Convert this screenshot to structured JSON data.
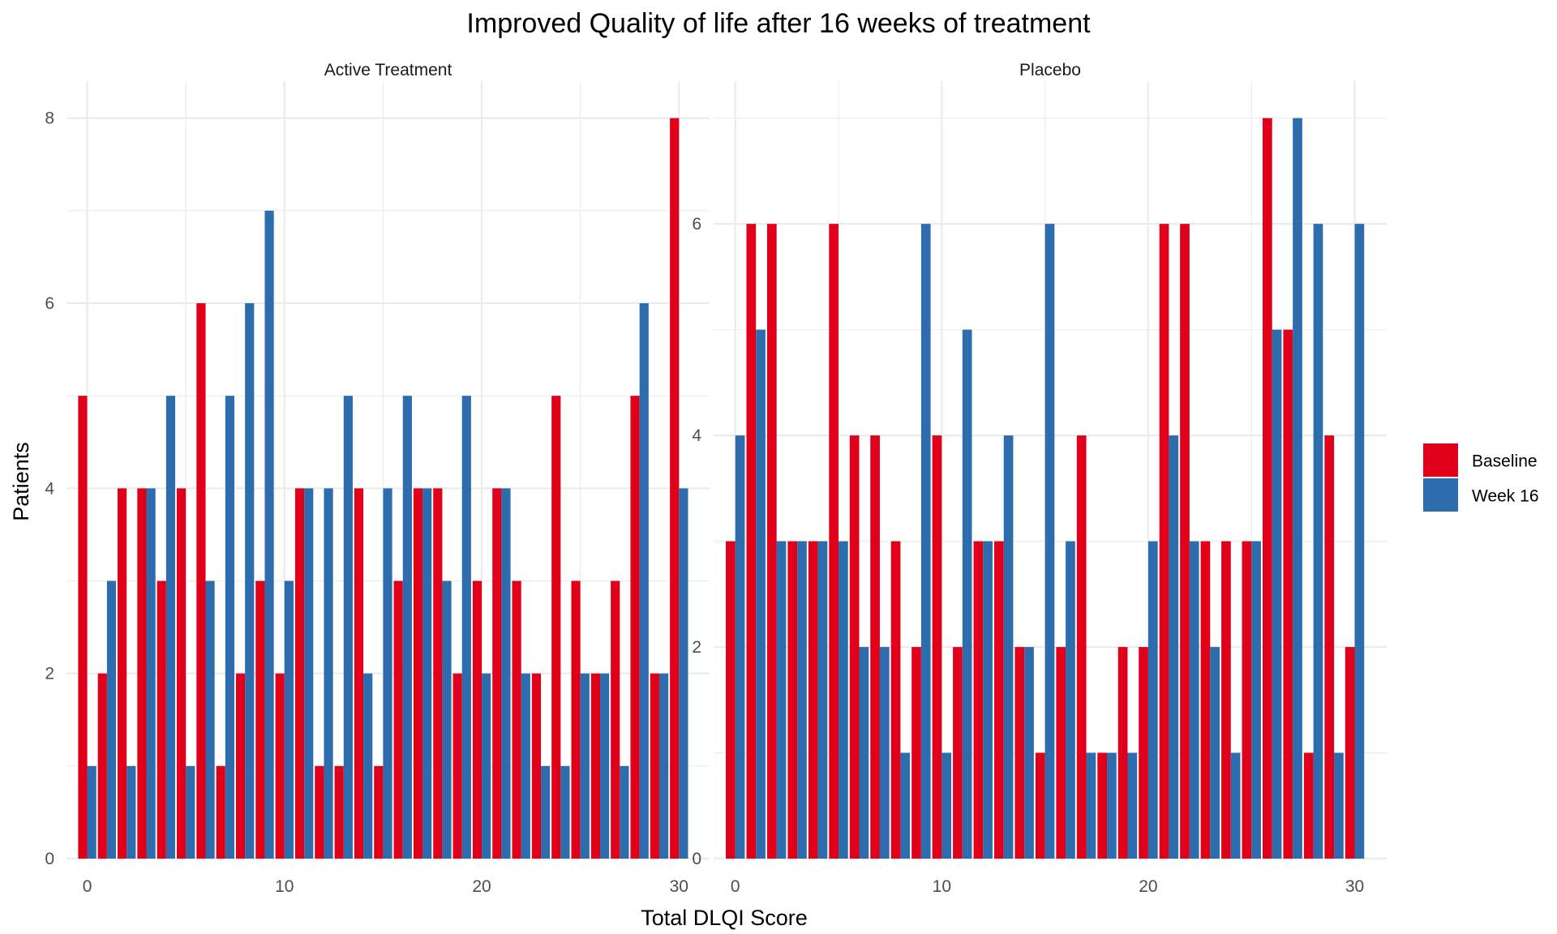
{
  "chart_data": {
    "type": "bar",
    "title": "Improved Quality of life after 16 weeks of treatment",
    "xlabel": "Total DLQI Score",
    "ylabel": "Patients",
    "x": [
      0,
      1,
      2,
      3,
      4,
      5,
      6,
      7,
      8,
      9,
      10,
      11,
      12,
      13,
      14,
      15,
      16,
      17,
      18,
      19,
      20,
      21,
      22,
      23,
      24,
      25,
      26,
      27,
      28,
      29,
      30
    ],
    "x_ticks": [
      0,
      10,
      20,
      30
    ],
    "grid": true,
    "legend_position": "right",
    "legend": [
      {
        "name": "Baseline",
        "color": "#e0001a"
      },
      {
        "name": "Week 16",
        "color": "#2e6dad"
      }
    ],
    "panels": [
      {
        "label": "Active Treatment",
        "ylim": [
          0,
          8
        ],
        "y_ticks": [
          0,
          2,
          4,
          6,
          8
        ],
        "series": [
          {
            "name": "Baseline",
            "values": [
              5,
              2,
              4,
              4,
              3,
              4,
              6,
              1,
              2,
              3,
              2,
              4,
              1,
              1,
              4,
              1,
              3,
              4,
              4,
              2,
              3,
              4,
              3,
              2,
              5,
              3,
              2,
              3,
              5,
              2,
              8
            ]
          },
          {
            "name": "Week 16",
            "values": [
              1,
              3,
              1,
              4,
              5,
              1,
              3,
              5,
              6,
              7,
              3,
              4,
              4,
              5,
              2,
              4,
              5,
              4,
              3,
              5,
              2,
              4,
              2,
              1,
              1,
              2,
              2,
              1,
              6,
              2,
              4
            ]
          }
        ]
      },
      {
        "label": "Placebo",
        "ylim": [
          0,
          7
        ],
        "y_ticks": [
          0,
          2,
          4,
          6
        ],
        "series": [
          {
            "name": "Baseline",
            "values": [
              3,
              6,
              6,
              3,
              3,
              6,
              4,
              4,
              3,
              2,
              4,
              2,
              3,
              3,
              2,
              1,
              2,
              4,
              1,
              2,
              2,
              6,
              6,
              3,
              3,
              3,
              7,
              5,
              1,
              4,
              2
            ]
          },
          {
            "name": "Week 16",
            "values": [
              4,
              5,
              3,
              3,
              3,
              3,
              2,
              2,
              1,
              6,
              1,
              5,
              3,
              4,
              2,
              6,
              3,
              1,
              1,
              1,
              3,
              4,
              3,
              2,
              1,
              3,
              5,
              7,
              6,
              1,
              6
            ]
          }
        ]
      }
    ]
  }
}
